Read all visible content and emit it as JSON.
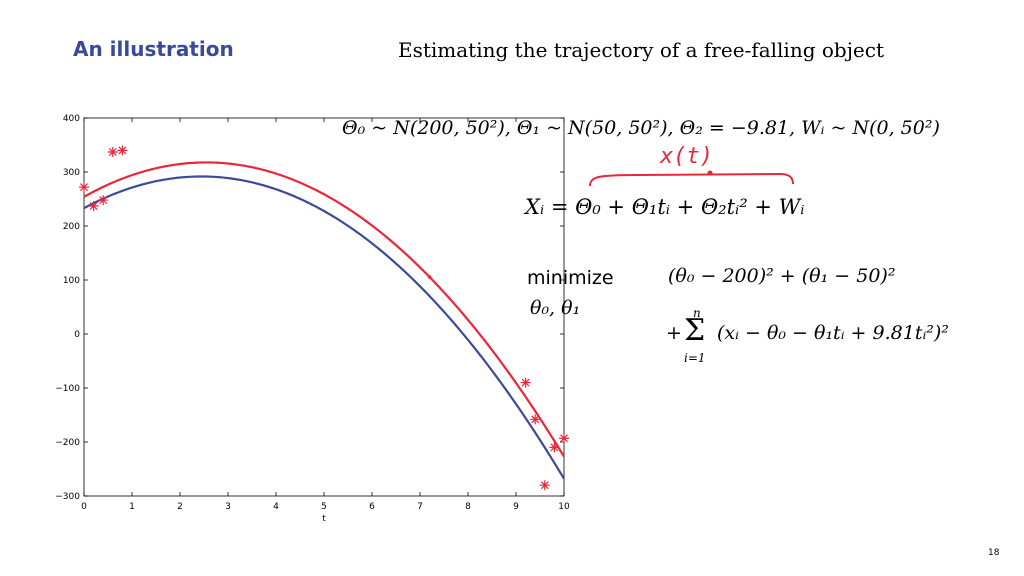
{
  "slide": {
    "title": "An illustration",
    "heading": "Estimating the trajectory of a free-falling object",
    "page_number": "18"
  },
  "equations": {
    "priors": "Θ₀ ~ N(200, 50²), Θ₁ ~ N(50, 50²), Θ₂ = −9.81, Wᵢ ~ N(0, 50²)",
    "handwritten_annotation": "x(t)",
    "model": "Xᵢ = Θ₀ + Θ₁tᵢ + Θ₂tᵢ² + Wᵢ",
    "minimize_label": "minimize",
    "minimize_vars": "θ₀, θ₁",
    "objective_line1": "(θ₀ − 200)² + (θ₁ − 50)²",
    "objective_line2": "(xᵢ − θ₀ − θ₁tᵢ + 9.81tᵢ²)²",
    "sum_upper": "n",
    "sum_lower": "i=1",
    "sum_symbol": "Σ",
    "plus": "+"
  },
  "chart_data": {
    "type": "scatter",
    "xlabel": "t",
    "ylabel": "",
    "xlim": [
      0,
      10
    ],
    "ylim": [
      -300,
      400
    ],
    "xticks": [
      0,
      1,
      2,
      3,
      4,
      5,
      6,
      7,
      8,
      9,
      10
    ],
    "yticks": [
      -300,
      -200,
      -100,
      0,
      100,
      200,
      300,
      400
    ],
    "grid": false,
    "series": [
      {
        "kind": "points",
        "marker": "asterisk",
        "color": "#e8283a",
        "x": [
          0.0,
          0.2,
          0.4,
          0.6,
          0.8,
          9.2,
          9.4,
          9.6,
          9.8,
          10.0
        ],
        "y": [
          272,
          237,
          248,
          337,
          340,
          -90,
          -158,
          -280,
          -210,
          -193
        ]
      },
      {
        "kind": "curve",
        "color": "#e8283a",
        "a0": 254,
        "a1": 50,
        "a2": -9.81
      },
      {
        "kind": "curve",
        "color": "#3b4a9a",
        "a0": 233,
        "a1": 48,
        "a2": -9.81
      }
    ]
  }
}
